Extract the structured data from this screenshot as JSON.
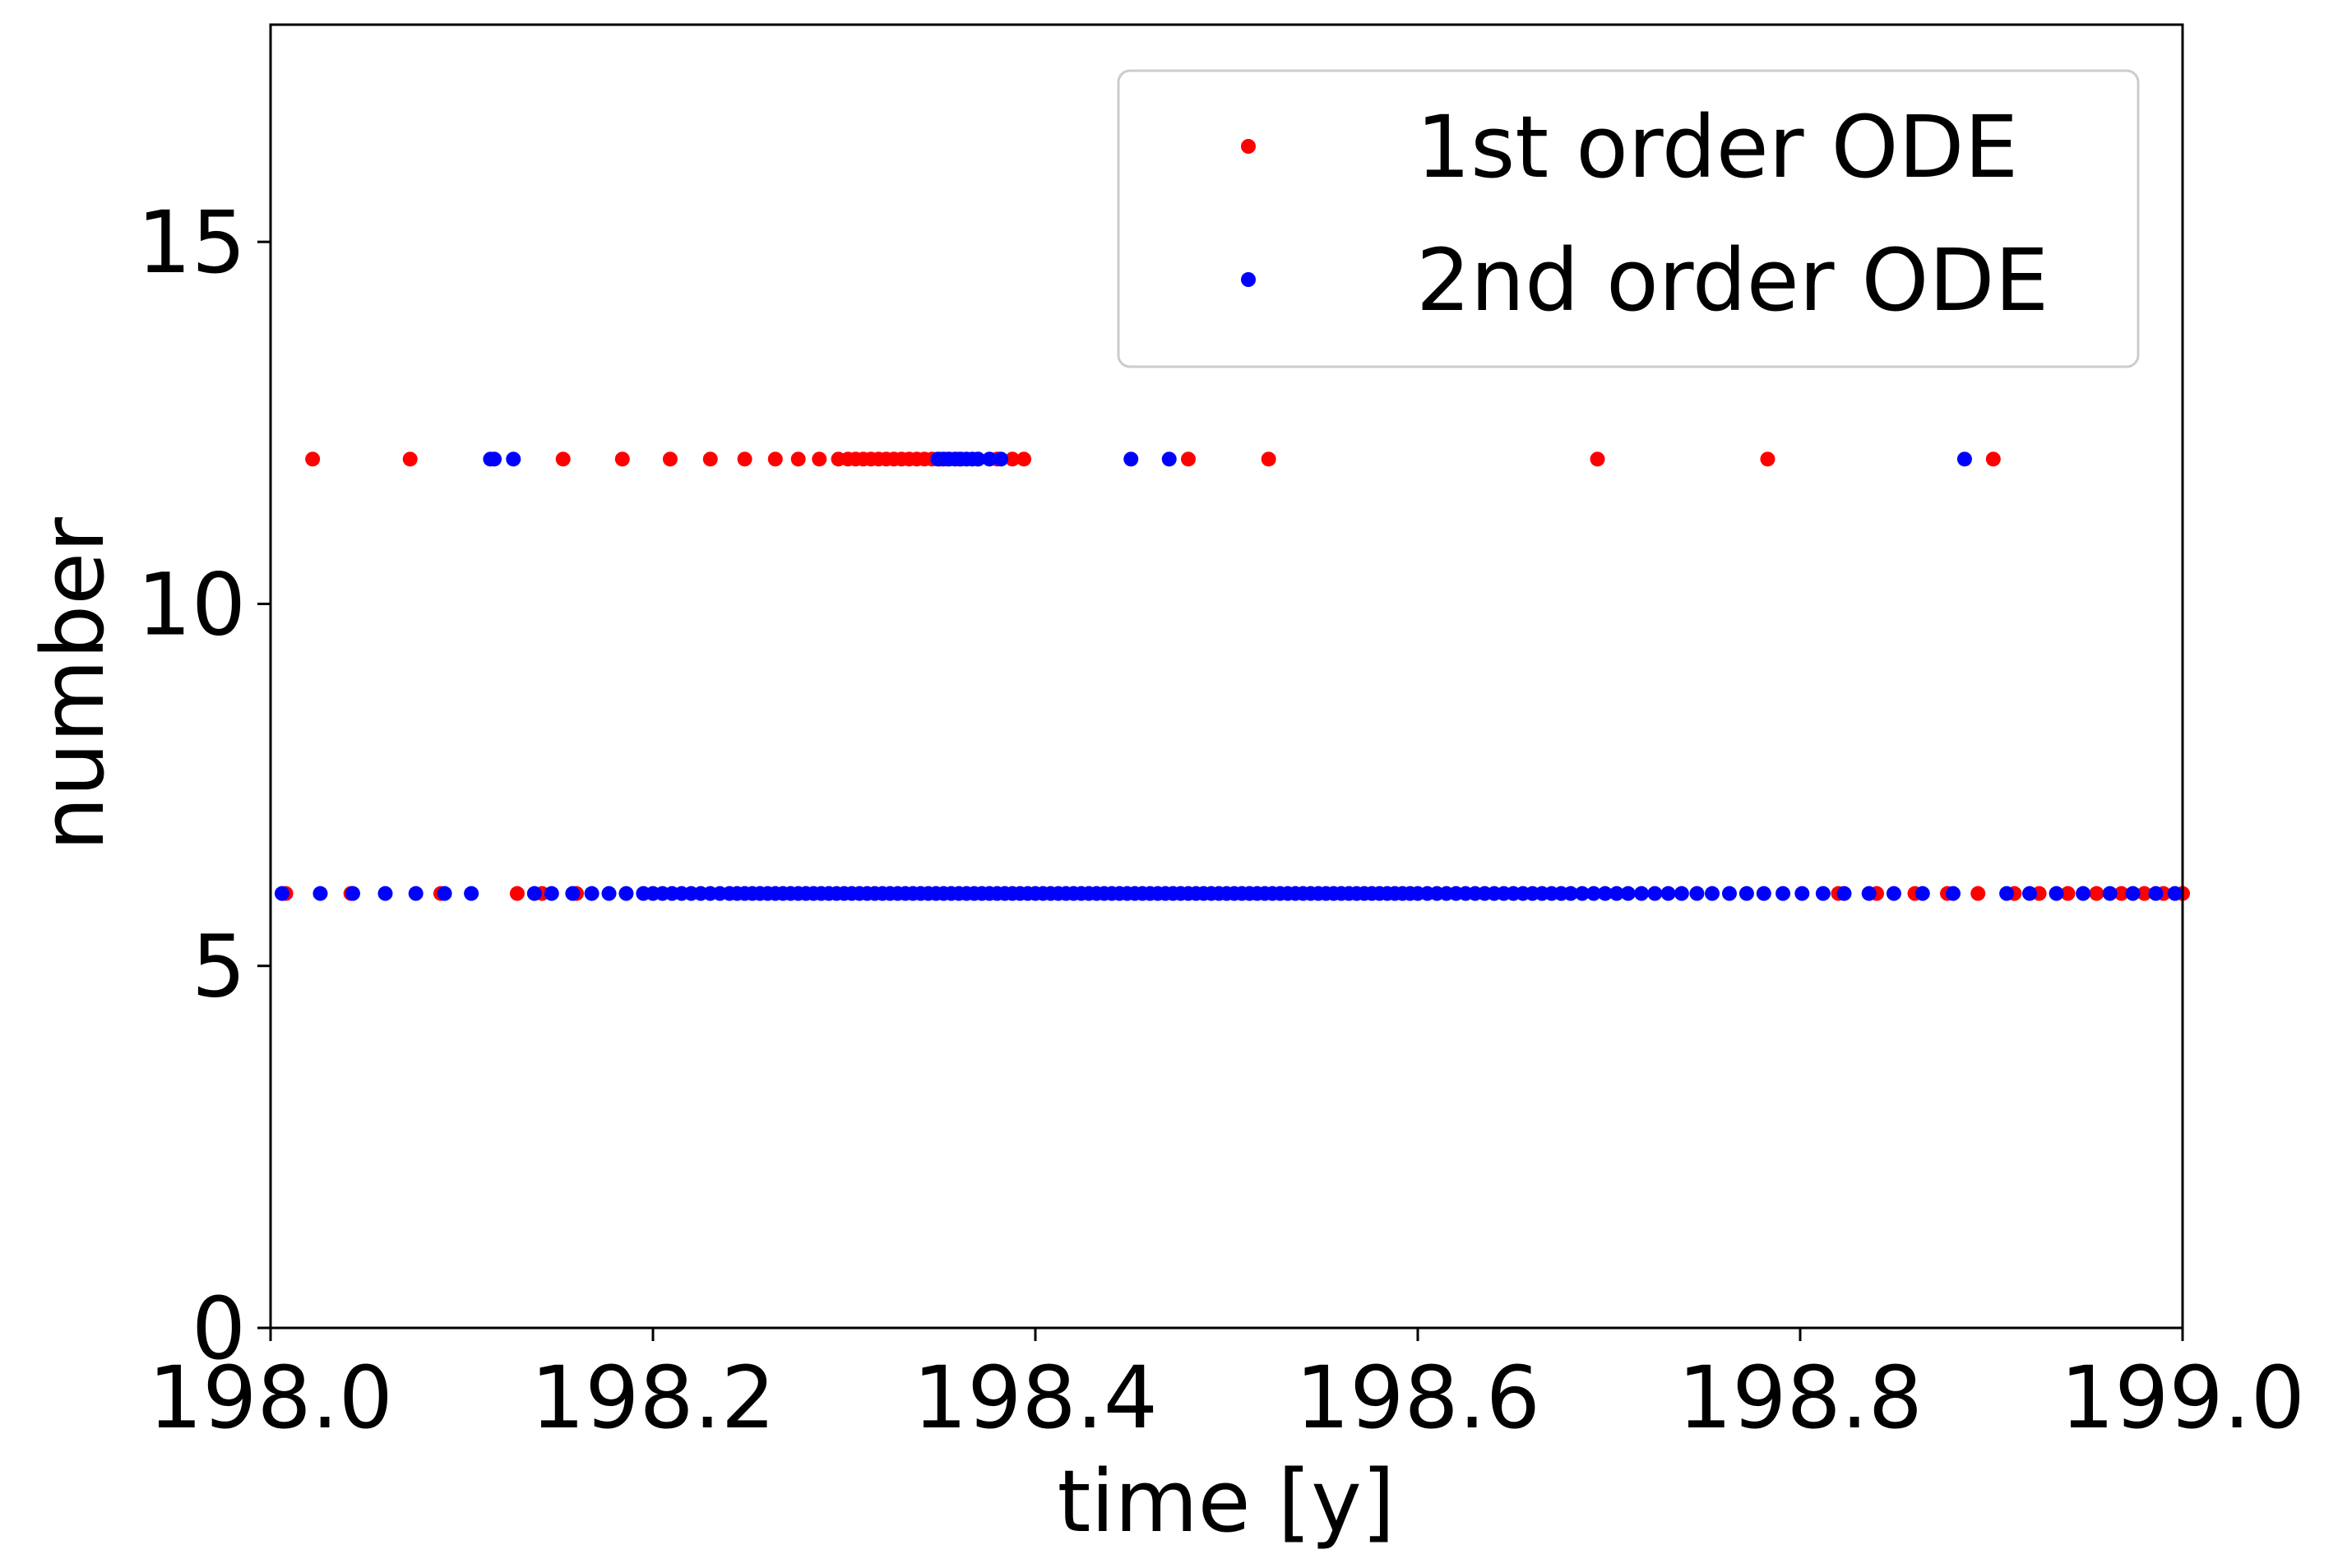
{
  "chart_data": {
    "type": "scatter",
    "title": "",
    "xlabel": "time [y]",
    "ylabel": "number",
    "xlim": [
      198.0,
      199.0
    ],
    "ylim": [
      0,
      18
    ],
    "xticks": [
      198.0,
      198.2,
      198.4,
      198.6,
      198.8,
      199.0
    ],
    "xtick_labels": [
      "198.0",
      "198.2",
      "198.4",
      "198.6",
      "198.8",
      "199.0"
    ],
    "yticks": [
      0,
      5,
      10,
      15
    ],
    "ytick_labels": [
      "0",
      "5",
      "10",
      "15"
    ],
    "grid": false,
    "legend": {
      "placement": "top-right"
    },
    "series": [
      {
        "name": "1st order ODE",
        "color": "#ff0000",
        "points": [
          [
            198.022,
            12
          ],
          [
            198.073,
            12
          ],
          [
            198.153,
            12
          ],
          [
            198.184,
            12
          ],
          [
            198.209,
            12
          ],
          [
            198.23,
            12
          ],
          [
            198.248,
            12
          ],
          [
            198.264,
            12
          ],
          [
            198.276,
            12
          ],
          [
            198.287,
            12
          ],
          [
            198.297,
            12
          ],
          [
            198.302,
            12
          ],
          [
            198.306,
            12
          ],
          [
            198.31,
            12
          ],
          [
            198.314,
            12
          ],
          [
            198.318,
            12
          ],
          [
            198.322,
            12
          ],
          [
            198.326,
            12
          ],
          [
            198.33,
            12
          ],
          [
            198.334,
            12
          ],
          [
            198.338,
            12
          ],
          [
            198.342,
            12
          ],
          [
            198.346,
            12
          ],
          [
            198.35,
            12
          ],
          [
            198.354,
            12
          ],
          [
            198.36,
            12
          ],
          [
            198.37,
            12
          ],
          [
            198.38,
            12
          ],
          [
            198.388,
            12
          ],
          [
            198.394,
            12
          ],
          [
            198.48,
            12
          ],
          [
            198.522,
            12
          ],
          [
            198.694,
            12
          ],
          [
            198.783,
            12
          ],
          [
            198.901,
            12
          ],
          [
            198.008,
            6
          ],
          [
            198.042,
            6
          ],
          [
            198.089,
            6
          ],
          [
            198.129,
            6
          ],
          [
            198.142,
            6
          ],
          [
            198.16,
            6
          ],
          [
            198.82,
            6
          ],
          [
            198.84,
            6
          ],
          [
            198.86,
            6
          ],
          [
            198.877,
            6
          ],
          [
            198.893,
            6
          ],
          [
            198.912,
            6
          ],
          [
            198.925,
            6
          ],
          [
            198.94,
            6
          ],
          [
            198.955,
            6
          ],
          [
            198.968,
            6
          ],
          [
            198.98,
            6
          ],
          [
            198.99,
            6
          ],
          [
            199.0,
            6
          ]
        ]
      },
      {
        "name": "2nd order ODE",
        "color": "#0000ff",
        "points": [
          [
            198.115,
            12
          ],
          [
            198.117,
            12
          ],
          [
            198.127,
            12
          ],
          [
            198.349,
            12
          ],
          [
            198.352,
            12
          ],
          [
            198.355,
            12
          ],
          [
            198.358,
            12
          ],
          [
            198.361,
            12
          ],
          [
            198.364,
            12
          ],
          [
            198.367,
            12
          ],
          [
            198.37,
            12
          ],
          [
            198.376,
            12
          ],
          [
            198.382,
            12
          ],
          [
            198.45,
            12
          ],
          [
            198.47,
            12
          ],
          [
            198.886,
            12
          ],
          [
            198.006,
            6
          ],
          [
            198.026,
            6
          ],
          [
            198.043,
            6
          ],
          [
            198.06,
            6
          ],
          [
            198.076,
            6
          ],
          [
            198.091,
            6
          ],
          [
            198.105,
            6
          ],
          [
            198.138,
            6
          ],
          [
            198.147,
            6
          ],
          [
            198.158,
            6
          ],
          [
            198.168,
            6
          ],
          [
            198.177,
            6
          ],
          [
            198.186,
            6
          ],
          [
            198.195,
            6
          ],
          [
            198.2,
            6
          ],
          [
            198.205,
            6
          ],
          [
            198.21,
            6
          ],
          [
            198.215,
            6
          ],
          [
            198.22,
            6
          ],
          [
            198.225,
            6
          ],
          [
            198.23,
            6
          ],
          [
            198.235,
            6
          ],
          [
            198.24,
            6
          ],
          [
            198.244,
            6
          ],
          [
            198.248,
            6
          ],
          [
            198.252,
            6
          ],
          [
            198.256,
            6
          ],
          [
            198.26,
            6
          ],
          [
            198.264,
            6
          ],
          [
            198.268,
            6
          ],
          [
            198.272,
            6
          ],
          [
            198.276,
            6
          ],
          [
            198.28,
            6
          ],
          [
            198.284,
            6
          ],
          [
            198.288,
            6
          ],
          [
            198.292,
            6
          ],
          [
            198.296,
            6
          ],
          [
            198.3,
            6
          ],
          [
            198.304,
            6
          ],
          [
            198.308,
            6
          ],
          [
            198.312,
            6
          ],
          [
            198.316,
            6
          ],
          [
            198.32,
            6
          ],
          [
            198.324,
            6
          ],
          [
            198.328,
            6
          ],
          [
            198.332,
            6
          ],
          [
            198.336,
            6
          ],
          [
            198.34,
            6
          ],
          [
            198.344,
            6
          ],
          [
            198.348,
            6
          ],
          [
            198.352,
            6
          ],
          [
            198.356,
            6
          ],
          [
            198.36,
            6
          ],
          [
            198.364,
            6
          ],
          [
            198.368,
            6
          ],
          [
            198.372,
            6
          ],
          [
            198.376,
            6
          ],
          [
            198.38,
            6
          ],
          [
            198.384,
            6
          ],
          [
            198.388,
            6
          ],
          [
            198.392,
            6
          ],
          [
            198.396,
            6
          ],
          [
            198.4,
            6
          ],
          [
            198.404,
            6
          ],
          [
            198.408,
            6
          ],
          [
            198.412,
            6
          ],
          [
            198.416,
            6
          ],
          [
            198.42,
            6
          ],
          [
            198.424,
            6
          ],
          [
            198.428,
            6
          ],
          [
            198.432,
            6
          ],
          [
            198.436,
            6
          ],
          [
            198.44,
            6
          ],
          [
            198.444,
            6
          ],
          [
            198.448,
            6
          ],
          [
            198.452,
            6
          ],
          [
            198.456,
            6
          ],
          [
            198.46,
            6
          ],
          [
            198.464,
            6
          ],
          [
            198.468,
            6
          ],
          [
            198.472,
            6
          ],
          [
            198.476,
            6
          ],
          [
            198.48,
            6
          ],
          [
            198.484,
            6
          ],
          [
            198.488,
            6
          ],
          [
            198.492,
            6
          ],
          [
            198.496,
            6
          ],
          [
            198.5,
            6
          ],
          [
            198.504,
            6
          ],
          [
            198.508,
            6
          ],
          [
            198.512,
            6
          ],
          [
            198.516,
            6
          ],
          [
            198.52,
            6
          ],
          [
            198.524,
            6
          ],
          [
            198.528,
            6
          ],
          [
            198.532,
            6
          ],
          [
            198.536,
            6
          ],
          [
            198.54,
            6
          ],
          [
            198.544,
            6
          ],
          [
            198.548,
            6
          ],
          [
            198.552,
            6
          ],
          [
            198.556,
            6
          ],
          [
            198.56,
            6
          ],
          [
            198.564,
            6
          ],
          [
            198.568,
            6
          ],
          [
            198.572,
            6
          ],
          [
            198.576,
            6
          ],
          [
            198.58,
            6
          ],
          [
            198.584,
            6
          ],
          [
            198.588,
            6
          ],
          [
            198.592,
            6
          ],
          [
            198.596,
            6
          ],
          [
            198.6,
            6
          ],
          [
            198.605,
            6
          ],
          [
            198.61,
            6
          ],
          [
            198.615,
            6
          ],
          [
            198.62,
            6
          ],
          [
            198.625,
            6
          ],
          [
            198.63,
            6
          ],
          [
            198.635,
            6
          ],
          [
            198.64,
            6
          ],
          [
            198.645,
            6
          ],
          [
            198.65,
            6
          ],
          [
            198.655,
            6
          ],
          [
            198.66,
            6
          ],
          [
            198.665,
            6
          ],
          [
            198.67,
            6
          ],
          [
            198.675,
            6
          ],
          [
            198.68,
            6
          ],
          [
            198.686,
            6
          ],
          [
            198.692,
            6
          ],
          [
            198.698,
            6
          ],
          [
            198.704,
            6
          ],
          [
            198.71,
            6
          ],
          [
            198.717,
            6
          ],
          [
            198.724,
            6
          ],
          [
            198.731,
            6
          ],
          [
            198.738,
            6
          ],
          [
            198.746,
            6
          ],
          [
            198.754,
            6
          ],
          [
            198.763,
            6
          ],
          [
            198.772,
            6
          ],
          [
            198.781,
            6
          ],
          [
            198.791,
            6
          ],
          [
            198.801,
            6
          ],
          [
            198.812,
            6
          ],
          [
            198.823,
            6
          ],
          [
            198.836,
            6
          ],
          [
            198.849,
            6
          ],
          [
            198.864,
            6
          ],
          [
            198.88,
            6
          ],
          [
            198.908,
            6
          ],
          [
            198.92,
            6
          ],
          [
            198.934,
            6
          ],
          [
            198.948,
            6
          ],
          [
            198.962,
            6
          ],
          [
            198.974,
            6
          ],
          [
            198.986,
            6
          ],
          [
            198.996,
            6
          ]
        ]
      }
    ]
  }
}
